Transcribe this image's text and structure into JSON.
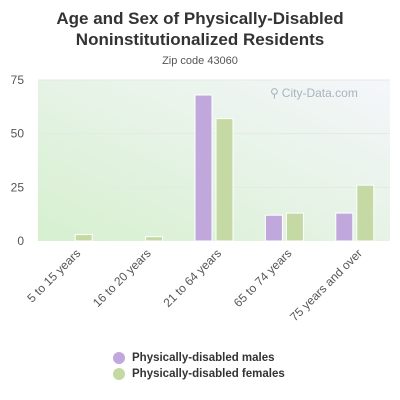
{
  "title_line1": "Age and Sex of Physically-Disabled",
  "title_line2": "Noninstitutionalized Residents",
  "subtitle": "Zip code 43060",
  "watermark": "City-Data.com",
  "colors": {
    "males": "#c0a8dc",
    "females": "#c4d9a4",
    "grid": "#e3ebe0",
    "axis_text": "#555555"
  },
  "chart_data": {
    "type": "bar",
    "title": "Age and Sex of Physically-Disabled Noninstitutionalized Residents",
    "subtitle": "Zip code 43060",
    "categories": [
      "5 to 15 years",
      "16 to 20 years",
      "21 to 64 years",
      "65 to 74 years",
      "75 years and over"
    ],
    "series": [
      {
        "name": "Physically-disabled males",
        "values": [
          0,
          0,
          68,
          12,
          13
        ]
      },
      {
        "name": "Physically-disabled females",
        "values": [
          3,
          2,
          57,
          13,
          26
        ]
      }
    ],
    "yticks": [
      0,
      25,
      50,
      75
    ],
    "ylim": [
      0,
      75
    ],
    "grid": true,
    "legend_position": "bottom"
  }
}
